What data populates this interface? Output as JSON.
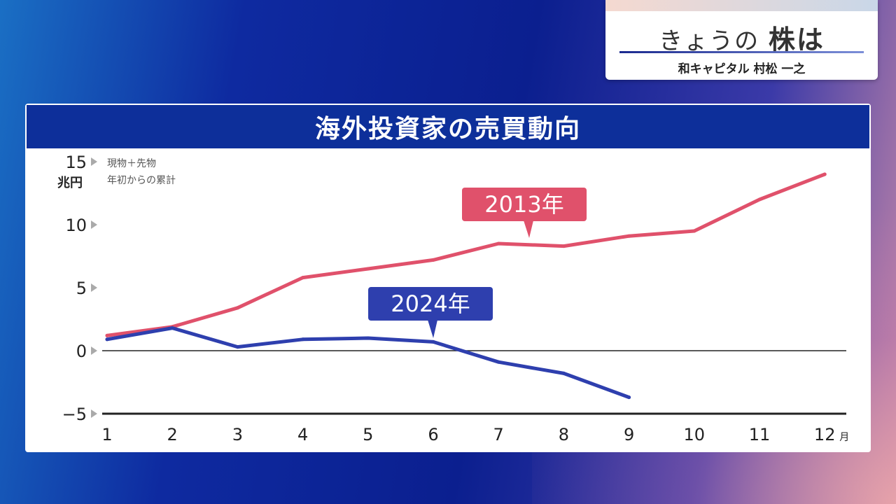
{
  "corner": {
    "title_pre": "きょうの",
    "title_em": "株は",
    "byline": "和キャピタル 村松 一之"
  },
  "panel": {
    "title": "海外投資家の売買動向"
  },
  "colors": {
    "s2013": "#e0516b",
    "s2024": "#2e3fae"
  },
  "chart_data": {
    "type": "line",
    "title": "海外投資家の売買動向",
    "y_unit": "兆円",
    "x_unit": "月",
    "notes": [
      "現物＋先物",
      "年初からの累計"
    ],
    "x": [
      1,
      2,
      3,
      4,
      5,
      6,
      7,
      8,
      9,
      10,
      11,
      12
    ],
    "ylim": [
      -5,
      15
    ],
    "yticks": [
      15,
      10,
      5,
      0,
      -5
    ],
    "series": [
      {
        "name": "2013年",
        "x": [
          1,
          2,
          3,
          4,
          5,
          6,
          7,
          8,
          9,
          10,
          11,
          12
        ],
        "values": [
          1.2,
          1.9,
          3.4,
          5.8,
          6.5,
          7.2,
          8.5,
          8.3,
          9.1,
          9.5,
          12.0,
          14.0
        ]
      },
      {
        "name": "2024年",
        "x": [
          1,
          2,
          3,
          4,
          5,
          6,
          7,
          8,
          9
        ],
        "values": [
          0.9,
          1.8,
          0.3,
          0.9,
          1.0,
          0.7,
          -0.9,
          -1.8,
          -3.7
        ]
      }
    ]
  }
}
